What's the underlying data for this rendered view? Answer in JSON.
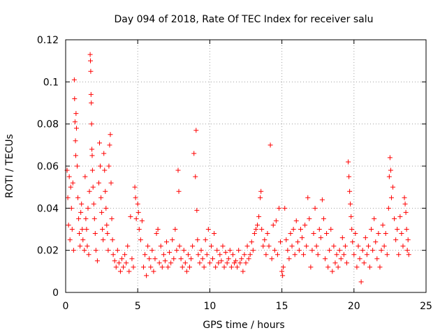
{
  "chart_data": {
    "type": "scatter",
    "title": "Day 094 of 2018, Rate Of TEC Index for receiver salu",
    "xlabel": "GPS time / hours",
    "ylabel": "ROTI / TECUs",
    "xlim": [
      0,
      25
    ],
    "ylim": [
      0,
      0.12
    ],
    "xticks": [
      0,
      5,
      10,
      15,
      20,
      25
    ],
    "xtick_labels": [
      "0",
      "5",
      "10",
      "15",
      "20",
      "25"
    ],
    "yticks": [
      0,
      0.02,
      0.04,
      0.06,
      0.08,
      0.1,
      0.12
    ],
    "ytick_labels": [
      "0",
      "0.02",
      "0.04",
      "0.06",
      "0.08",
      "0.1",
      "0.12"
    ],
    "grid": true,
    "marker": "+",
    "color": "#ff0000",
    "series": [
      {
        "name": "ROTI",
        "points": [
          [
            0.1,
            0.058
          ],
          [
            0.15,
            0.045
          ],
          [
            0.2,
            0.032
          ],
          [
            0.25,
            0.055
          ],
          [
            0.3,
            0.025
          ],
          [
            0.35,
            0.05
          ],
          [
            0.4,
            0.04
          ],
          [
            0.45,
            0.03
          ],
          [
            0.5,
            0.052
          ],
          [
            0.55,
            0.02
          ],
          [
            0.6,
            0.101
          ],
          [
            0.62,
            0.092
          ],
          [
            0.65,
            0.081
          ],
          [
            0.68,
            0.072
          ],
          [
            0.7,
            0.065
          ],
          [
            0.72,
            0.085
          ],
          [
            0.75,
            0.078
          ],
          [
            0.8,
            0.06
          ],
          [
            0.85,
            0.045
          ],
          [
            0.9,
            0.035
          ],
          [
            0.95,
            0.028
          ],
          [
            1.0,
            0.022
          ],
          [
            1.05,
            0.038
          ],
          [
            1.1,
            0.042
          ],
          [
            1.15,
            0.03
          ],
          [
            1.2,
            0.025
          ],
          [
            1.3,
            0.02
          ],
          [
            1.35,
            0.055
          ],
          [
            1.4,
            0.035
          ],
          [
            1.45,
            0.03
          ],
          [
            1.5,
            0.022
          ],
          [
            1.55,
            0.04
          ],
          [
            1.6,
            0.018
          ],
          [
            1.65,
            0.048
          ],
          [
            1.7,
            0.113
          ],
          [
            1.72,
            0.11
          ],
          [
            1.74,
            0.105
          ],
          [
            1.76,
            0.094
          ],
          [
            1.78,
            0.09
          ],
          [
            1.8,
            0.08
          ],
          [
            1.82,
            0.068
          ],
          [
            1.84,
            0.065
          ],
          [
            1.86,
            0.058
          ],
          [
            1.9,
            0.05
          ],
          [
            1.95,
            0.042
          ],
          [
            2.0,
            0.035
          ],
          [
            2.05,
            0.028
          ],
          [
            2.1,
            0.02
          ],
          [
            2.2,
            0.015
          ],
          [
            2.3,
            0.052
          ],
          [
            2.35,
            0.071
          ],
          [
            2.4,
            0.06
          ],
          [
            2.45,
            0.045
          ],
          [
            2.5,
            0.038
          ],
          [
            2.55,
            0.03
          ],
          [
            2.6,
            0.025
          ],
          [
            2.65,
            0.066
          ],
          [
            2.7,
            0.058
          ],
          [
            2.75,
            0.048
          ],
          [
            2.8,
            0.04
          ],
          [
            2.85,
            0.032
          ],
          [
            2.9,
            0.028
          ],
          [
            2.95,
            0.02
          ],
          [
            3.0,
            0.06
          ],
          [
            3.05,
            0.07
          ],
          [
            3.1,
            0.075
          ],
          [
            3.15,
            0.052
          ],
          [
            3.2,
            0.035
          ],
          [
            3.25,
            0.025
          ],
          [
            3.3,
            0.018
          ],
          [
            3.4,
            0.015
          ],
          [
            3.5,
            0.012
          ],
          [
            3.6,
            0.02
          ],
          [
            3.7,
            0.014
          ],
          [
            3.8,
            0.01
          ],
          [
            3.9,
            0.016
          ],
          [
            4.0,
            0.012
          ],
          [
            4.1,
            0.018
          ],
          [
            4.2,
            0.014
          ],
          [
            4.3,
            0.022
          ],
          [
            4.4,
            0.01
          ],
          [
            4.5,
            0.036
          ],
          [
            4.6,
            0.016
          ],
          [
            4.7,
            0.012
          ],
          [
            4.8,
            0.05
          ],
          [
            4.85,
            0.045
          ],
          [
            4.9,
            0.035
          ],
          [
            5.0,
            0.042
          ],
          [
            5.05,
            0.038
          ],
          [
            5.1,
            0.03
          ],
          [
            5.2,
            0.025
          ],
          [
            5.3,
            0.034
          ],
          [
            5.4,
            0.012
          ],
          [
            5.5,
            0.018
          ],
          [
            5.6,
            0.008
          ],
          [
            5.7,
            0.022
          ],
          [
            5.8,
            0.016
          ],
          [
            5.9,
            0.012
          ],
          [
            6.0,
            0.02
          ],
          [
            6.1,
            0.01
          ],
          [
            6.2,
            0.016
          ],
          [
            6.3,
            0.028
          ],
          [
            6.4,
            0.03
          ],
          [
            6.5,
            0.014
          ],
          [
            6.6,
            0.022
          ],
          [
            6.7,
            0.012
          ],
          [
            6.8,
            0.018
          ],
          [
            6.9,
            0.015
          ],
          [
            7.0,
            0.024
          ],
          [
            7.1,
            0.012
          ],
          [
            7.2,
            0.019
          ],
          [
            7.3,
            0.014
          ],
          [
            7.4,
            0.025
          ],
          [
            7.5,
            0.016
          ],
          [
            7.6,
            0.03
          ],
          [
            7.7,
            0.02
          ],
          [
            7.8,
            0.058
          ],
          [
            7.85,
            0.048
          ],
          [
            7.9,
            0.022
          ],
          [
            8.0,
            0.016
          ],
          [
            8.1,
            0.012
          ],
          [
            8.2,
            0.02
          ],
          [
            8.3,
            0.014
          ],
          [
            8.4,
            0.01
          ],
          [
            8.5,
            0.018
          ],
          [
            8.6,
            0.012
          ],
          [
            8.7,
            0.016
          ],
          [
            8.8,
            0.022
          ],
          [
            8.9,
            0.066
          ],
          [
            9.0,
            0.055
          ],
          [
            9.05,
            0.077
          ],
          [
            9.1,
            0.039
          ],
          [
            9.15,
            0.025
          ],
          [
            9.2,
            0.018
          ],
          [
            9.3,
            0.014
          ],
          [
            9.4,
            0.02
          ],
          [
            9.5,
            0.016
          ],
          [
            9.6,
            0.012
          ],
          [
            9.7,
            0.025
          ],
          [
            9.8,
            0.018
          ],
          [
            9.9,
            0.03
          ],
          [
            10.0,
            0.014
          ],
          [
            10.1,
            0.022
          ],
          [
            10.2,
            0.016
          ],
          [
            10.3,
            0.028
          ],
          [
            10.4,
            0.012
          ],
          [
            10.5,
            0.02
          ],
          [
            10.6,
            0.014
          ],
          [
            10.7,
            0.018
          ],
          [
            10.8,
            0.015
          ],
          [
            10.9,
            0.022
          ],
          [
            11.0,
            0.012
          ],
          [
            11.1,
            0.019
          ],
          [
            11.2,
            0.014
          ],
          [
            11.3,
            0.016
          ],
          [
            11.4,
            0.02
          ],
          [
            11.5,
            0.012
          ],
          [
            11.6,
            0.018
          ],
          [
            11.7,
            0.014
          ],
          [
            11.8,
            0.015
          ],
          [
            11.9,
            0.012
          ],
          [
            12.0,
            0.02
          ],
          [
            12.1,
            0.014
          ],
          [
            12.2,
            0.016
          ],
          [
            12.3,
            0.01
          ],
          [
            12.4,
            0.018
          ],
          [
            12.5,
            0.014
          ],
          [
            12.6,
            0.022
          ],
          [
            12.7,
            0.016
          ],
          [
            12.8,
            0.018
          ],
          [
            12.9,
            0.024
          ],
          [
            13.0,
            0.02
          ],
          [
            13.1,
            0.028
          ],
          [
            13.2,
            0.03
          ],
          [
            13.3,
            0.032
          ],
          [
            13.4,
            0.036
          ],
          [
            13.5,
            0.045
          ],
          [
            13.55,
            0.048
          ],
          [
            13.6,
            0.03
          ],
          [
            13.7,
            0.022
          ],
          [
            13.8,
            0.025
          ],
          [
            13.9,
            0.018
          ],
          [
            14.0,
            0.028
          ],
          [
            14.1,
            0.022
          ],
          [
            14.2,
            0.07
          ],
          [
            14.3,
            0.016
          ],
          [
            14.4,
            0.032
          ],
          [
            14.5,
            0.02
          ],
          [
            14.6,
            0.034
          ],
          [
            14.7,
            0.018
          ],
          [
            14.8,
            0.04
          ],
          [
            14.9,
            0.024
          ],
          [
            15.0,
            0.01
          ],
          [
            15.05,
            0.008
          ],
          [
            15.1,
            0.012
          ],
          [
            15.2,
            0.04
          ],
          [
            15.3,
            0.025
          ],
          [
            15.4,
            0.02
          ],
          [
            15.5,
            0.016
          ],
          [
            15.6,
            0.028
          ],
          [
            15.7,
            0.022
          ],
          [
            15.8,
            0.03
          ],
          [
            15.9,
            0.018
          ],
          [
            16.0,
            0.034
          ],
          [
            16.1,
            0.024
          ],
          [
            16.2,
            0.02
          ],
          [
            16.3,
            0.03
          ],
          [
            16.4,
            0.026
          ],
          [
            16.5,
            0.018
          ],
          [
            16.6,
            0.032
          ],
          [
            16.7,
            0.022
          ],
          [
            16.8,
            0.045
          ],
          [
            16.9,
            0.035
          ],
          [
            17.0,
            0.012
          ],
          [
            17.1,
            0.02
          ],
          [
            17.2,
            0.028
          ],
          [
            17.3,
            0.04
          ],
          [
            17.4,
            0.022
          ],
          [
            17.5,
            0.018
          ],
          [
            17.6,
            0.03
          ],
          [
            17.7,
            0.026
          ],
          [
            17.8,
            0.044
          ],
          [
            17.9,
            0.035
          ],
          [
            18.0,
            0.016
          ],
          [
            18.1,
            0.028
          ],
          [
            18.2,
            0.012
          ],
          [
            18.3,
            0.02
          ],
          [
            18.4,
            0.03
          ],
          [
            18.5,
            0.01
          ],
          [
            18.6,
            0.022
          ],
          [
            18.7,
            0.014
          ],
          [
            18.8,
            0.018
          ],
          [
            18.9,
            0.012
          ],
          [
            19.0,
            0.02
          ],
          [
            19.1,
            0.016
          ],
          [
            19.2,
            0.026
          ],
          [
            19.3,
            0.018
          ],
          [
            19.4,
            0.022
          ],
          [
            19.5,
            0.014
          ],
          [
            19.6,
            0.062
          ],
          [
            19.65,
            0.055
          ],
          [
            19.7,
            0.048
          ],
          [
            19.75,
            0.042
          ],
          [
            19.8,
            0.036
          ],
          [
            19.85,
            0.03
          ],
          [
            19.9,
            0.024
          ],
          [
            20.0,
            0.018
          ],
          [
            20.1,
            0.028
          ],
          [
            20.2,
            0.012
          ],
          [
            20.3,
            0.022
          ],
          [
            20.4,
            0.016
          ],
          [
            20.5,
            0.005
          ],
          [
            20.6,
            0.02
          ],
          [
            20.7,
            0.014
          ],
          [
            20.8,
            0.026
          ],
          [
            20.9,
            0.018
          ],
          [
            21.0,
            0.022
          ],
          [
            21.1,
            0.012
          ],
          [
            21.2,
            0.03
          ],
          [
            21.3,
            0.02
          ],
          [
            21.4,
            0.035
          ],
          [
            21.5,
            0.024
          ],
          [
            21.6,
            0.016
          ],
          [
            21.7,
            0.028
          ],
          [
            21.8,
            0.012
          ],
          [
            21.9,
            0.02
          ],
          [
            22.0,
            0.032
          ],
          [
            22.1,
            0.022
          ],
          [
            22.2,
            0.028
          ],
          [
            22.3,
            0.018
          ],
          [
            22.4,
            0.04
          ],
          [
            22.45,
            0.055
          ],
          [
            22.5,
            0.064
          ],
          [
            22.55,
            0.058
          ],
          [
            22.6,
            0.045
          ],
          [
            22.7,
            0.05
          ],
          [
            22.8,
            0.035
          ],
          [
            22.9,
            0.025
          ],
          [
            23.0,
            0.03
          ],
          [
            23.1,
            0.018
          ],
          [
            23.2,
            0.036
          ],
          [
            23.3,
            0.028
          ],
          [
            23.4,
            0.022
          ],
          [
            23.5,
            0.045
          ],
          [
            23.55,
            0.042
          ],
          [
            23.6,
            0.038
          ],
          [
            23.65,
            0.03
          ],
          [
            23.7,
            0.02
          ],
          [
            23.75,
            0.025
          ],
          [
            23.8,
            0.018
          ]
        ]
      }
    ]
  }
}
